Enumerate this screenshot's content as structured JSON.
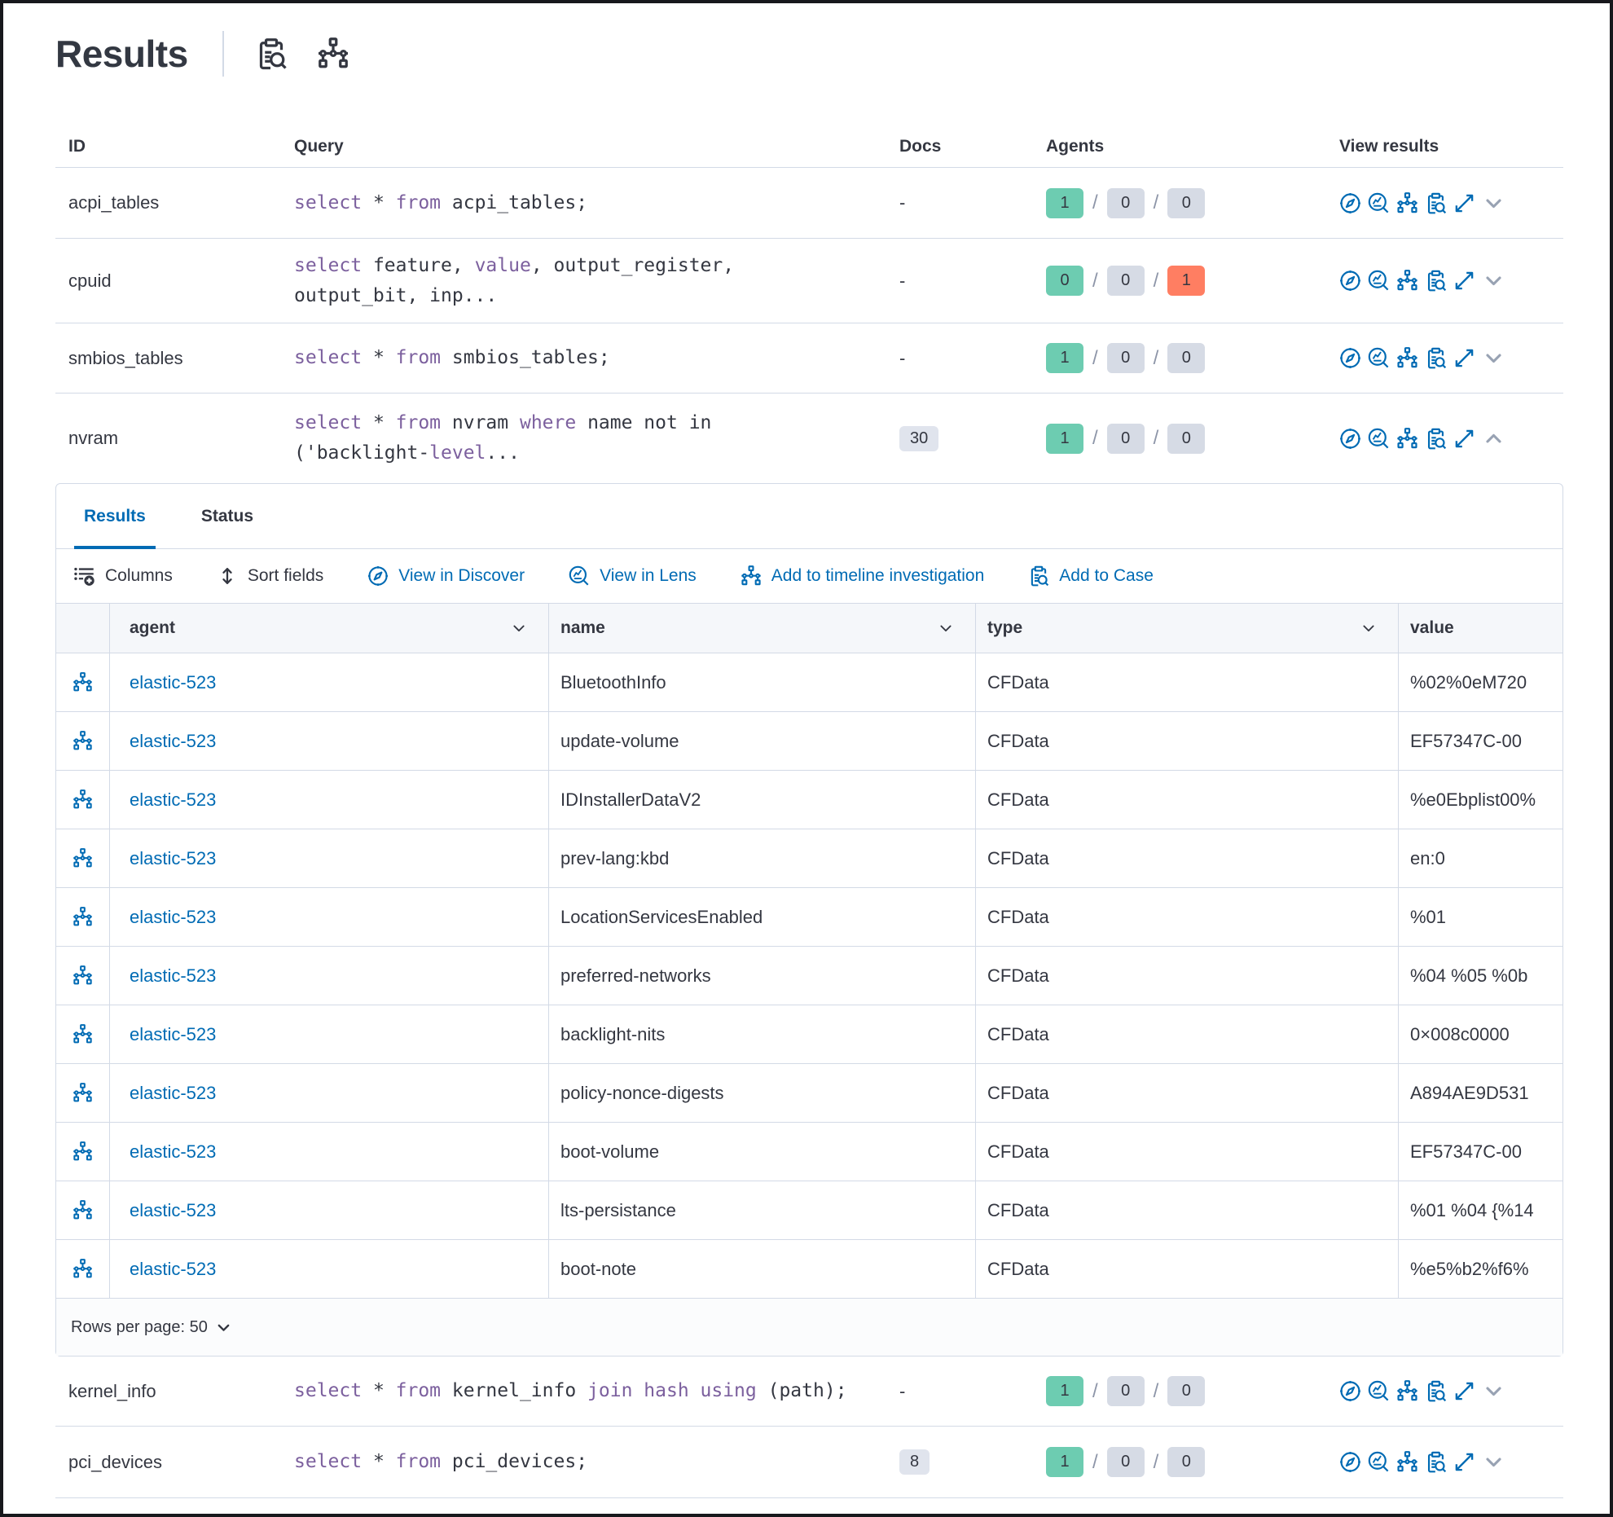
{
  "page": {
    "title": "Results",
    "header_actions": [
      {
        "icon": "case-icon",
        "name": "live-query-details-icon"
      },
      {
        "icon": "timeline-icon",
        "name": "timeline-icon"
      }
    ]
  },
  "colors": {
    "accent_blue": "#006bb4",
    "keyword_purple": "#7c609e",
    "success_green": "#6dccb1",
    "danger_red": "#ff7e62",
    "neutral_badge": "#d6dbe5",
    "border": "#d3dae6"
  },
  "query_table": {
    "columns": [
      "ID",
      "Query",
      "Docs",
      "Agents",
      "View results"
    ],
    "view_results_actions": [
      {
        "icon": "discover-icon",
        "name": "view-in-discover-icon"
      },
      {
        "icon": "lens-icon",
        "name": "view-in-lens-icon"
      },
      {
        "icon": "timeline-icon",
        "name": "add-to-timeline-icon"
      },
      {
        "icon": "case-icon",
        "name": "add-to-case-icon"
      },
      {
        "icon": "expand-icon",
        "name": "expand-results-icon"
      }
    ],
    "rows_before_panel": [
      {
        "id": "acpi_tables",
        "query": [
          {
            "t": "select",
            "k": true
          },
          {
            "t": " * ",
            "k": false
          },
          {
            "t": "from",
            "k": true
          },
          {
            "t": " acpi_tables;",
            "k": false
          }
        ],
        "docs": "-",
        "docs_is_badge": false,
        "agents": [
          {
            "value": "1",
            "status": "success"
          },
          {
            "value": "0",
            "status": "default"
          },
          {
            "value": "0",
            "status": "default"
          }
        ],
        "expanded": false
      },
      {
        "id": "cpuid",
        "query": [
          {
            "t": "select",
            "k": true
          },
          {
            "t": " feature, ",
            "k": false
          },
          {
            "t": "value",
            "k": true
          },
          {
            "t": ", output_register,\noutput_bit, inp...",
            "k": false
          }
        ],
        "docs": "-",
        "docs_is_badge": false,
        "agents": [
          {
            "value": "0",
            "status": "success"
          },
          {
            "value": "0",
            "status": "default"
          },
          {
            "value": "1",
            "status": "danger"
          }
        ],
        "expanded": false
      },
      {
        "id": "smbios_tables",
        "query": [
          {
            "t": "select",
            "k": true
          },
          {
            "t": " * ",
            "k": false
          },
          {
            "t": "from",
            "k": true
          },
          {
            "t": " smbios_tables;",
            "k": false
          }
        ],
        "docs": "-",
        "docs_is_badge": false,
        "agents": [
          {
            "value": "1",
            "status": "success"
          },
          {
            "value": "0",
            "status": "default"
          },
          {
            "value": "0",
            "status": "default"
          }
        ],
        "expanded": false
      },
      {
        "id": "nvram",
        "query": [
          {
            "t": "select",
            "k": true
          },
          {
            "t": " * ",
            "k": false
          },
          {
            "t": "from",
            "k": true
          },
          {
            "t": " nvram ",
            "k": false
          },
          {
            "t": "where",
            "k": true
          },
          {
            "t": " name not in\n('backlight-",
            "k": false
          },
          {
            "t": "level",
            "k": true
          },
          {
            "t": "...",
            "k": false
          }
        ],
        "docs": "30",
        "docs_is_badge": true,
        "agents": [
          {
            "value": "1",
            "status": "success"
          },
          {
            "value": "0",
            "status": "default"
          },
          {
            "value": "0",
            "status": "default"
          }
        ],
        "expanded": true
      }
    ],
    "rows_after_panel": [
      {
        "id": "kernel_info",
        "query": [
          {
            "t": "select",
            "k": true
          },
          {
            "t": " * ",
            "k": false
          },
          {
            "t": "from",
            "k": true
          },
          {
            "t": " kernel_info ",
            "k": false
          },
          {
            "t": "join hash using",
            "k": true
          },
          {
            "t": " (path);",
            "k": false
          }
        ],
        "docs": "-",
        "docs_is_badge": false,
        "agents": [
          {
            "value": "1",
            "status": "success"
          },
          {
            "value": "0",
            "status": "default"
          },
          {
            "value": "0",
            "status": "default"
          }
        ],
        "expanded": false
      },
      {
        "id": "pci_devices",
        "query": [
          {
            "t": "select",
            "k": true
          },
          {
            "t": " * ",
            "k": false
          },
          {
            "t": "from",
            "k": true
          },
          {
            "t": " pci_devices;",
            "k": false
          }
        ],
        "docs": "8",
        "docs_is_badge": true,
        "agents": [
          {
            "value": "1",
            "status": "success"
          },
          {
            "value": "0",
            "status": "default"
          },
          {
            "value": "0",
            "status": "default"
          }
        ],
        "expanded": false
      }
    ]
  },
  "results_panel": {
    "tabs": [
      {
        "label": "Results",
        "active": true
      },
      {
        "label": "Status",
        "active": false
      }
    ],
    "toolbar": [
      {
        "label": "Columns",
        "icon": "columns-icon",
        "style": "dark"
      },
      {
        "label": "Sort fields",
        "icon": "sort-icon",
        "style": "dark"
      },
      {
        "label": "View in Discover",
        "icon": "discover-icon",
        "style": "blue"
      },
      {
        "label": "View in Lens",
        "icon": "lens-icon",
        "style": "blue"
      },
      {
        "label": "Add to timeline investigation",
        "icon": "timeline-icon",
        "style": "blue"
      },
      {
        "label": "Add to Case",
        "icon": "case-icon",
        "style": "blue"
      }
    ],
    "grid": {
      "columns": [
        {
          "label": "agent",
          "sortable": true
        },
        {
          "label": "name",
          "sortable": true
        },
        {
          "label": "type",
          "sortable": true
        },
        {
          "label": "value",
          "sortable": false
        }
      ],
      "rows": [
        {
          "agent": "elastic-523",
          "name": "BluetoothInfo",
          "type": "CFData",
          "value": "%02%0eM720"
        },
        {
          "agent": "elastic-523",
          "name": "update-volume",
          "type": "CFData",
          "value": "EF57347C-00"
        },
        {
          "agent": "elastic-523",
          "name": "IDInstallerDataV2",
          "type": "CFData",
          "value": "%e0Ebplist00%"
        },
        {
          "agent": "elastic-523",
          "name": "prev-lang:kbd",
          "type": "CFData",
          "value": "en:0"
        },
        {
          "agent": "elastic-523",
          "name": "LocationServicesEnabled",
          "type": "CFData",
          "value": "%01"
        },
        {
          "agent": "elastic-523",
          "name": "preferred-networks",
          "type": "CFData",
          "value": "%04 %05 %0b"
        },
        {
          "agent": "elastic-523",
          "name": "backlight-nits",
          "type": "CFData",
          "value": "0×008c0000"
        },
        {
          "agent": "elastic-523",
          "name": "policy-nonce-digests",
          "type": "CFData",
          "value": "A894AE9D531"
        },
        {
          "agent": "elastic-523",
          "name": "boot-volume",
          "type": "CFData",
          "value": "EF57347C-00"
        },
        {
          "agent": "elastic-523",
          "name": "lts-persistance",
          "type": "CFData",
          "value": "%01 %04 {%14"
        },
        {
          "agent": "elastic-523",
          "name": "boot-note",
          "type": "CFData",
          "value": "%e5%b2%f6%"
        }
      ],
      "rows_per_page_label": "Rows per page: 50"
    }
  }
}
